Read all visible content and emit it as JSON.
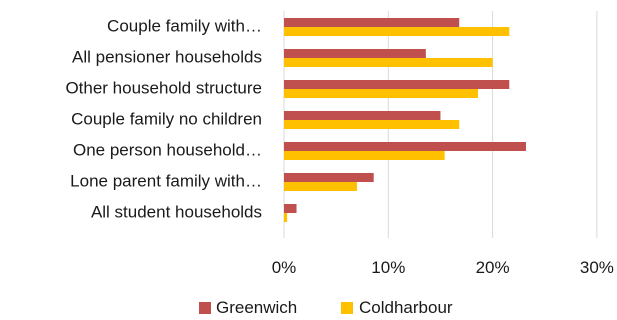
{
  "chart_data": {
    "type": "bar",
    "orientation": "horizontal",
    "categories": [
      "Couple family with…",
      "All pensioner households",
      "Other household structure",
      "Couple family no children",
      "One person household…",
      "Lone parent family with…",
      "All student households"
    ],
    "series": [
      {
        "name": "Greenwich",
        "color": "#c0504d",
        "values": [
          16.8,
          13.6,
          21.6,
          15.0,
          23.2,
          8.6,
          1.2
        ]
      },
      {
        "name": "Coldharbour",
        "color": "#ffc000",
        "values": [
          21.6,
          20.0,
          18.6,
          16.8,
          15.4,
          7.0,
          0.3
        ]
      }
    ],
    "x_ticks": [
      "0%",
      "10%",
      "20%",
      "30%"
    ],
    "xlim": [
      0,
      30
    ],
    "grid": "vertical",
    "legend": "bottom",
    "title": "",
    "xlabel": "",
    "ylabel": ""
  }
}
